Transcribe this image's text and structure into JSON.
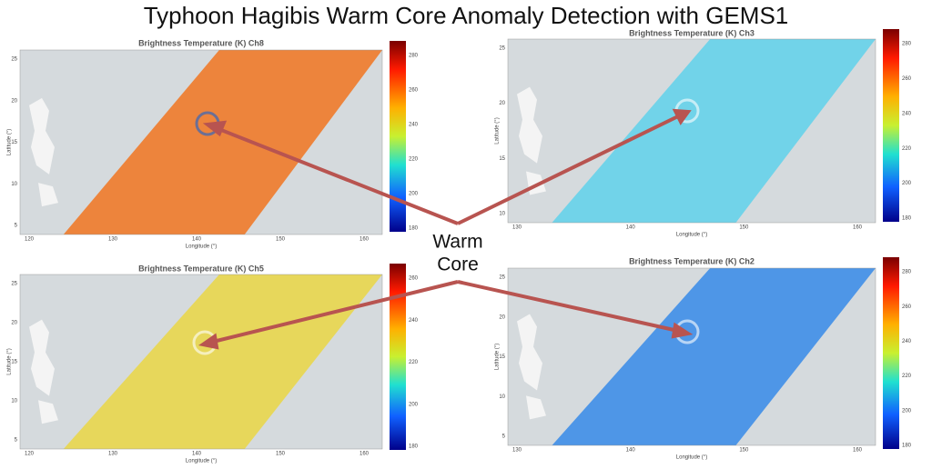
{
  "title": "Typhoon Hagibis Warm Core Anomaly Detection with GEMS1",
  "annotation": {
    "lines": [
      "Warm",
      "Core"
    ]
  },
  "panels": [
    {
      "title": "Brightness Temperature (K) Ch8",
      "x_label": "Longitude (°)",
      "y_label": "Latitude (°)",
      "x_ticks": [
        120,
        130,
        140,
        150,
        160
      ],
      "y_ticks": [
        5,
        10,
        15,
        20,
        25
      ],
      "colorbar_ticks": [
        180,
        200,
        220,
        240,
        260,
        280
      ]
    },
    {
      "title": "Brightness Temperature (K) Ch3",
      "x_label": "Longitude (°)",
      "y_label": "Latitude (°)",
      "x_ticks": [
        130,
        140,
        150,
        160
      ],
      "y_ticks": [
        10,
        15,
        20,
        25
      ],
      "colorbar_ticks": [
        180,
        200,
        220,
        240,
        260,
        280
      ]
    },
    {
      "title": "Brightness Temperature (K) Ch5",
      "x_label": "Longitude (°)",
      "y_label": "Latitude (°)",
      "x_ticks": [
        120,
        130,
        140,
        150,
        160
      ],
      "y_ticks": [
        5,
        10,
        15,
        20,
        25
      ],
      "colorbar_ticks": [
        180,
        200,
        220,
        240,
        260
      ]
    },
    {
      "title": "Brightness Temperature (K) Ch2",
      "x_label": "Longitude (°)",
      "y_label": "Latitude (°)",
      "x_ticks": [
        130,
        140,
        150,
        160
      ],
      "y_ticks": [
        5,
        10,
        15,
        20,
        25
      ],
      "colorbar_ticks": [
        180,
        200,
        220,
        240,
        260,
        280
      ]
    }
  ]
}
